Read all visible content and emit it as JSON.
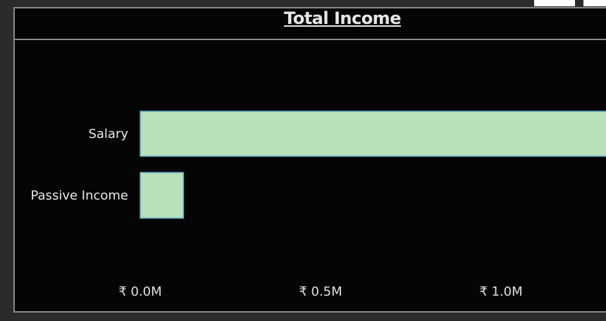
{
  "chart_data": {
    "type": "bar",
    "orientation": "horizontal",
    "title": "Total Income",
    "categories": [
      "Salary",
      "Passive Income"
    ],
    "values": [
      1.3,
      0.12
    ],
    "x_ticks": [
      "₹ 0.0M",
      "₹ 0.5M",
      "₹ 1.0M"
    ],
    "x_tick_values": [
      0.0,
      0.5,
      1.0
    ],
    "bar_color": "#b9e0b9",
    "bar_border_color": "#5aa0c8",
    "background_color": "#050505",
    "grid": false
  }
}
